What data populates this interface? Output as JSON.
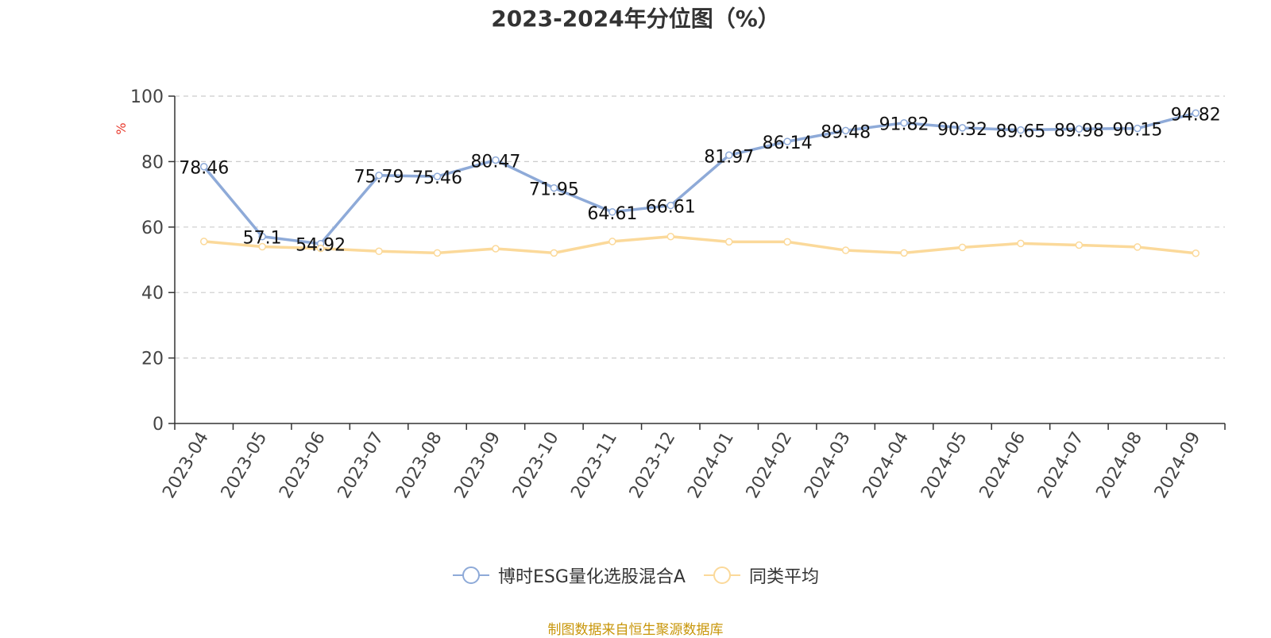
{
  "chart_data": {
    "type": "line",
    "title": "2023-2024年分位图（%）",
    "ylabel": "%",
    "ylim": [
      0,
      100
    ],
    "yticks": [
      0,
      20,
      40,
      60,
      80,
      100
    ],
    "grid": true,
    "legend_position": "bottom",
    "categories": [
      "2023-04",
      "2023-05",
      "2023-06",
      "2023-07",
      "2023-08",
      "2023-09",
      "2023-10",
      "2023-11",
      "2023-12",
      "2024-01",
      "2024-02",
      "2024-03",
      "2024-04",
      "2024-05",
      "2024-06",
      "2024-07",
      "2024-08",
      "2024-09"
    ],
    "series": [
      {
        "name": "博时ESG量化选股混合A",
        "color": "#8eaad8",
        "show_labels": true,
        "values": [
          78.46,
          57.1,
          54.92,
          75.79,
          75.46,
          80.47,
          71.95,
          64.61,
          66.61,
          81.97,
          86.14,
          89.48,
          91.82,
          90.32,
          89.65,
          89.98,
          90.15,
          94.82
        ]
      },
      {
        "name": "同类平均",
        "color": "#fbd99a",
        "show_labels": false,
        "values": [
          55.6,
          54.0,
          53.5,
          52.6,
          52.1,
          53.4,
          52.1,
          55.6,
          57.1,
          55.5,
          55.5,
          52.9,
          52.1,
          53.8,
          55.0,
          54.5,
          53.9,
          52.0
        ]
      }
    ]
  },
  "source_note": "制图数据来自恒生聚源数据库"
}
